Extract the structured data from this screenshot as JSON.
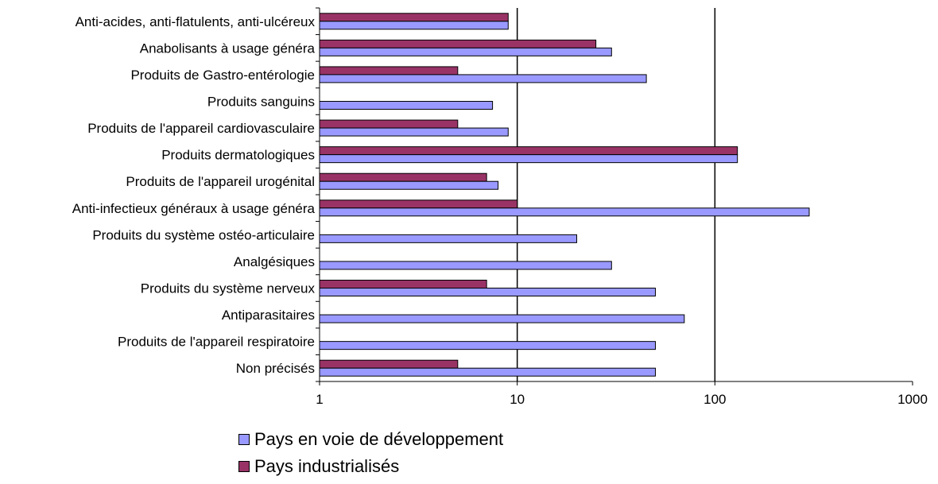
{
  "chart_data": {
    "type": "bar",
    "orientation": "horizontal",
    "x_scale": "log",
    "xlim": [
      1,
      1000
    ],
    "x_ticks": [
      "1",
      "10",
      "100",
      "1000"
    ],
    "grid": "vertical major gridlines at 10 and 100",
    "legend_placement": "bottom",
    "categories": [
      "Anti-acides, anti-flatulents, anti-ulcéreux",
      "Anabolisants à usage généra",
      "Produits de Gastro-entérologie",
      "Produits sanguins",
      "Produits de l'appareil cardiovasculaire",
      "Produits dermatologiques",
      "Produits de l'appareil urogénital",
      "Anti-infectieux généraux à usage généra",
      "Produits du système ostéo-articulaire",
      "Analgésiques",
      "Produits du système nerveux",
      "Antiparasitaires",
      "Produits de l'appareil respiratoire",
      "Non précisés"
    ],
    "series": [
      {
        "name": "Pays en voie de développement",
        "color": "#9999ff",
        "values": [
          9,
          30,
          45,
          7.5,
          9,
          130,
          8,
          300,
          20,
          30,
          50,
          70,
          50,
          50
        ]
      },
      {
        "name": "Pays industrialisés",
        "color": "#993366",
        "values": [
          9,
          25,
          5,
          null,
          5,
          130,
          7,
          10,
          null,
          null,
          7,
          null,
          null,
          5
        ]
      }
    ]
  }
}
